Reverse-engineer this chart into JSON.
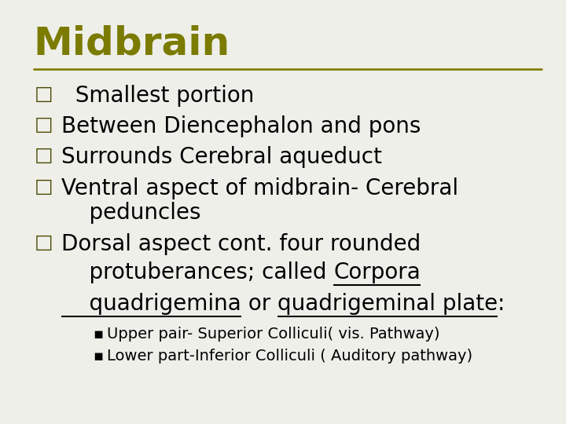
{
  "title": "Midbrain",
  "title_color": "#7b7b00",
  "title_fontsize": 36,
  "separator_color": "#808000",
  "background_color": "#efefea",
  "bullet_char": "□",
  "sub_bullet_char": "▪",
  "bullet_fontsize": 20,
  "sub_bullet_fontsize": 14,
  "bullet_color": "#4a4a00",
  "text_color": "#000000",
  "figwidth": 7.2,
  "figheight": 5.4,
  "dpi": 100,
  "line1": "  Smallest portion",
  "line2": "Between Diencephalon and pons",
  "line3": "Surrounds Cerebral aqueduct",
  "line4a": "Ventral aspect of midbrain- Cerebral",
  "line4b": "    peduncles",
  "line5a": "Dorsal aspect cont. four rounded",
  "line5b_pre": "    protuberances; called ",
  "line5b_u1": "Corpora",
  "line5c_u2": "    quadrigemina",
  "line5c_mid": " or ",
  "line5c_u3": "quadrigeminal plate",
  "line5c_end": ":",
  "sub1": "Upper pair- Superior Colliculi( vis. Pathway)",
  "sub2": "Lower part-Inferior Colliculi ( Auditory pathway)"
}
